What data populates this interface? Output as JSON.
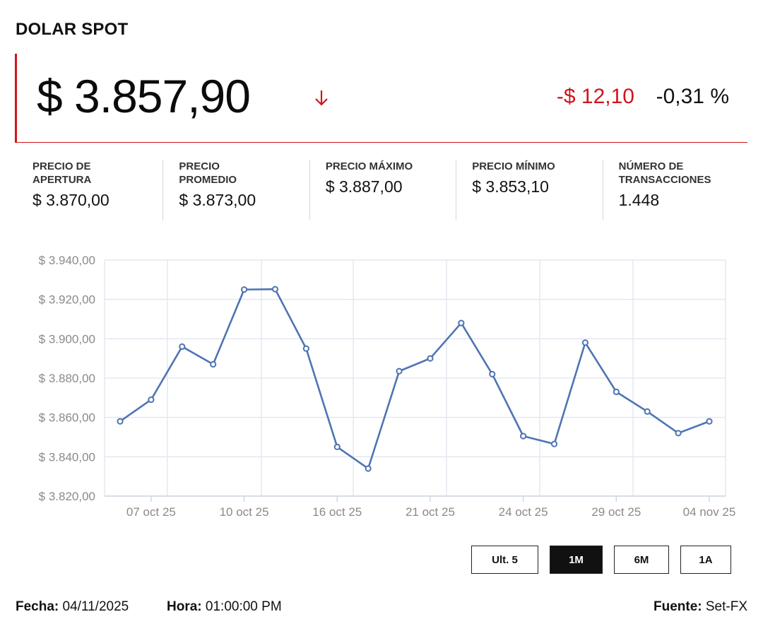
{
  "title": "DOLAR SPOT",
  "price": "$ 3.857,90",
  "change_abs": "-$ 12,10",
  "change_pct": "-0,31 %",
  "stats": [
    {
      "label_1": "PRECIO DE",
      "label_2": "APERTURA",
      "value": "$ 3.870,00"
    },
    {
      "label_1": "PRECIO",
      "label_2": "PROMEDIO",
      "value": "$ 3.873,00"
    },
    {
      "label_1": "PRECIO MÁXIMO",
      "label_2": "",
      "value": "$ 3.887,00"
    },
    {
      "label_1": "PRECIO MÍNIMO",
      "label_2": "",
      "value": "$ 3.853,10"
    },
    {
      "label_1": "NÚMERO DE",
      "label_2": "TRANSACCIONES",
      "value": "1.448"
    }
  ],
  "chart_data": {
    "type": "line",
    "ylim": [
      3820,
      3940
    ],
    "yticks": [
      3820,
      3840,
      3860,
      3880,
      3900,
      3920,
      3940
    ],
    "ytick_labels": [
      "$ 3.820,00",
      "$ 3.840,00",
      "$ 3.860,00",
      "$ 3.880,00",
      "$ 3.900,00",
      "$ 3.920,00",
      "$ 3.940,00"
    ],
    "x_tick_labels": [
      "07 oct 25",
      "10 oct 25",
      "16 oct 25",
      "21 oct 25",
      "24 oct 25",
      "29 oct 25",
      "04 nov 25"
    ],
    "x_tick_index": [
      1,
      4,
      7,
      10,
      13,
      16,
      19
    ],
    "series": [
      {
        "color": "#4f74b3",
        "values": [
          3858,
          3869,
          3896,
          3887,
          3925,
          3925.2,
          3895,
          3845,
          3834,
          3883.5,
          3890,
          3908,
          3882,
          3850.5,
          3846.5,
          3898,
          3873,
          3863,
          3852,
          3858
        ]
      }
    ],
    "grid": true
  },
  "buttons": [
    {
      "label": "Ult. 5",
      "active": false
    },
    {
      "label": "1M",
      "active": true
    },
    {
      "label": "6M",
      "active": false
    },
    {
      "label": "1A",
      "active": false
    }
  ],
  "footer": {
    "fecha_label": "Fecha:",
    "fecha_value": "04/11/2025",
    "hora_label": "Hora:",
    "hora_value": "01:00:00 PM",
    "fuente_label": "Fuente:",
    "fuente_value": "Set-FX"
  },
  "colors": {
    "accent": "#d0151b",
    "line": "#4f74b3"
  }
}
